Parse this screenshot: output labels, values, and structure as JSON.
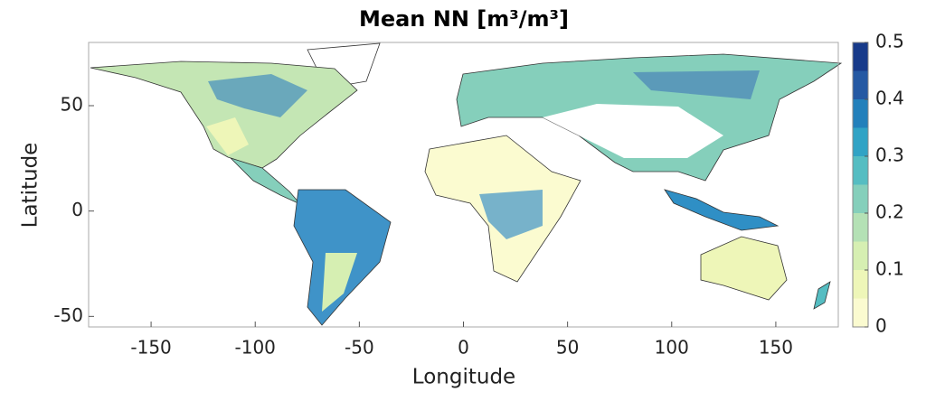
{
  "chart_data": {
    "type": "map",
    "title": "Mean NN [m³/m³]",
    "x_label": "Longitude",
    "y_label": "Latitude",
    "xlim": [
      -180,
      180
    ],
    "xticks": [
      -150,
      -100,
      -50,
      0,
      50,
      100,
      150
    ],
    "ylim": [
      -55,
      80
    ],
    "yticks": [
      -50,
      0,
      50
    ],
    "colorbar": {
      "lim": [
        0,
        0.5
      ],
      "ticks": [
        0,
        0.1,
        0.2,
        0.3,
        0.4,
        0.5
      ],
      "colors": [
        "#fbfbd0",
        "#eef6b8",
        "#d6efb2",
        "#b4e1b5",
        "#85cfbb",
        "#55bdc2",
        "#31a3c5",
        "#2380bb",
        "#2559a3",
        "#173a8a"
      ]
    }
  }
}
